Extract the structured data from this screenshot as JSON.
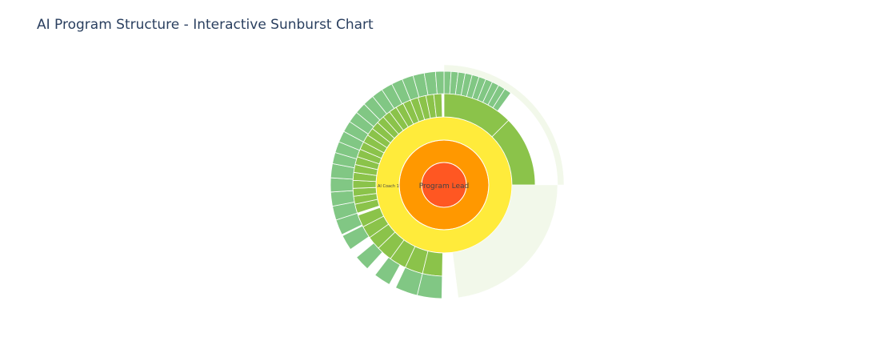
{
  "title": "AI Program Structure - Interactive Sunburst Chart",
  "colors": {
    "root": "#ff5722",
    "level1": "#ff9800",
    "level2": "#ffeb3b",
    "level3": "#8bc34a",
    "level4": "#81c784",
    "fading": "#c5e1a5",
    "stroke": "#ffffff"
  },
  "chart_data": {
    "type": "sunburst",
    "levels": [
      {
        "depth": 0,
        "label": "Program Lead",
        "color": "#ff5722",
        "segments": [
          [
            0,
            1
          ]
        ]
      },
      {
        "depth": 1,
        "label": "",
        "color": "#ff9800",
        "segments": [
          [
            0,
            1
          ]
        ]
      },
      {
        "depth": 2,
        "label": "AI Coach 1",
        "color": "#ffeb3b",
        "segments": [
          [
            0,
            1
          ]
        ]
      },
      {
        "depth": 3,
        "color": "#8bc34a",
        "segments": [
          [
            0.0,
            0.125
          ],
          [
            0.125,
            0.25
          ],
          [
            0.503,
            0.538
          ],
          [
            0.538,
            0.57
          ],
          [
            0.57,
            0.6
          ],
          [
            0.6,
            0.628
          ],
          [
            0.628,
            0.652
          ],
          [
            0.652,
            0.674
          ],
          [
            0.674,
            0.696
          ],
          [
            0.7,
            0.716
          ],
          [
            0.716,
            0.73
          ],
          [
            0.73,
            0.744
          ],
          [
            0.744,
            0.758
          ],
          [
            0.758,
            0.772
          ],
          [
            0.772,
            0.786
          ],
          [
            0.786,
            0.8
          ],
          [
            0.8,
            0.814
          ],
          [
            0.814,
            0.828
          ],
          [
            0.828,
            0.842
          ],
          [
            0.842,
            0.856
          ],
          [
            0.856,
            0.87
          ],
          [
            0.87,
            0.884
          ],
          [
            0.884,
            0.898
          ],
          [
            0.898,
            0.912
          ],
          [
            0.912,
            0.926
          ],
          [
            0.926,
            0.94
          ],
          [
            0.94,
            0.954
          ],
          [
            0.954,
            0.968
          ],
          [
            0.968,
            0.982
          ],
          [
            0.982,
            0.996
          ]
        ]
      },
      {
        "depth": 4,
        "color": "#81c784",
        "segments": [
          [
            0.0,
            0.01
          ],
          [
            0.01,
            0.02
          ],
          [
            0.02,
            0.03
          ],
          [
            0.03,
            0.04
          ],
          [
            0.04,
            0.05
          ],
          [
            0.05,
            0.06
          ],
          [
            0.06,
            0.07
          ],
          [
            0.07,
            0.08
          ],
          [
            0.08,
            0.09
          ],
          [
            0.09,
            0.1
          ],
          [
            0.503,
            0.538
          ],
          [
            0.538,
            0.57
          ],
          [
            0.58,
            0.604
          ],
          [
            0.618,
            0.64
          ],
          [
            0.654,
            0.676
          ],
          [
            0.678,
            0.7
          ],
          [
            0.7,
            0.72
          ],
          [
            0.72,
            0.74
          ],
          [
            0.74,
            0.76
          ],
          [
            0.76,
            0.78
          ],
          [
            0.78,
            0.796
          ],
          [
            0.796,
            0.812
          ],
          [
            0.812,
            0.828
          ],
          [
            0.828,
            0.844
          ],
          [
            0.844,
            0.86
          ],
          [
            0.86,
            0.876
          ],
          [
            0.876,
            0.892
          ],
          [
            0.892,
            0.908
          ],
          [
            0.908,
            0.924
          ],
          [
            0.924,
            0.94
          ],
          [
            0.94,
            0.956
          ],
          [
            0.956,
            0.972
          ],
          [
            0.972,
            0.988
          ],
          [
            0.988,
            1.0
          ]
        ]
      }
    ],
    "labels": [
      "Program Lead",
      "AI Coach 1"
    ],
    "hierarchy_depth": 5
  }
}
